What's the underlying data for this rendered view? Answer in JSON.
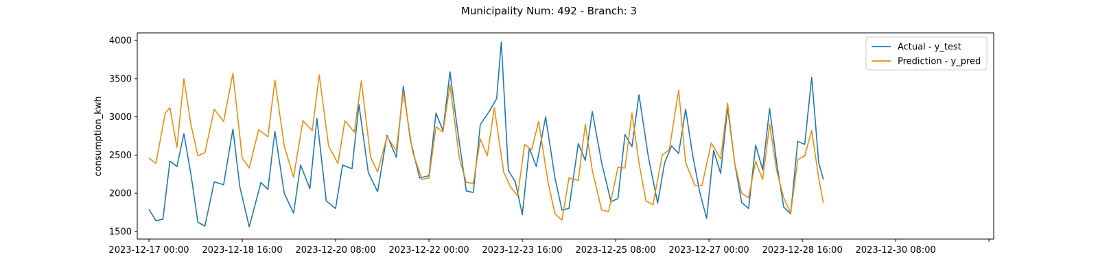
{
  "chart_data": {
    "type": "line",
    "title": "Municipality Num: 492 - Branch: 3",
    "xlabel": "",
    "ylabel": "consumption_kwh",
    "ylim": [
      1400,
      4100
    ],
    "yticks": [
      1500,
      2000,
      2500,
      3000,
      3500,
      4000
    ],
    "xlim": [
      "2023-12-16 19:00",
      "2024-01-01 02:00"
    ],
    "xticks": [
      {
        "x": "2023-12-17 00:00",
        "label": "2023-12-17 00:00"
      },
      {
        "x": "2023-12-18 16:00",
        "label": "2023-12-18 16:00"
      },
      {
        "x": "2023-12-20 08:00",
        "label": "2023-12-20 08:00"
      },
      {
        "x": "2023-12-22 00:00",
        "label": "2023-12-22 00:00"
      },
      {
        "x": "2023-12-23 16:00",
        "label": "2023-12-23 16:00"
      },
      {
        "x": "2023-12-25 08:00",
        "label": "2023-12-25 08:00"
      },
      {
        "x": "2023-12-27 00:00",
        "label": "2023-12-27 00:00"
      },
      {
        "x": "2023-12-28 16:00",
        "label": "2023-12-28 16:00"
      },
      {
        "x": "2023-12-30 08:00",
        "label": "2023-12-30 08:00"
      },
      {
        "x": "2024-01-01 00:00",
        "label": ""
      }
    ],
    "grid": false,
    "legend_position": "top-right",
    "series": [
      {
        "name": "Actual - y_test",
        "color": "#1f77b4",
        "points": [
          [
            "2023-12-17 00:00",
            1790
          ],
          [
            "2023-12-17 03:00",
            1640
          ],
          [
            "2023-12-17 06:00",
            1660
          ],
          [
            "2023-12-17 09:00",
            2420
          ],
          [
            "2023-12-17 12:00",
            2350
          ],
          [
            "2023-12-17 15:00",
            2780
          ],
          [
            "2023-12-17 18:00",
            2250
          ],
          [
            "2023-12-17 21:00",
            1620
          ],
          [
            "2023-12-18 00:00",
            1570
          ],
          [
            "2023-12-18 04:00",
            2150
          ],
          [
            "2023-12-18 08:00",
            2110
          ],
          [
            "2023-12-18 12:00",
            2840
          ],
          [
            "2023-12-18 15:00",
            2080
          ],
          [
            "2023-12-18 19:00",
            1560
          ],
          [
            "2023-12-19 00:00",
            2140
          ],
          [
            "2023-12-19 03:00",
            2050
          ],
          [
            "2023-12-19 06:00",
            2810
          ],
          [
            "2023-12-19 10:00",
            2000
          ],
          [
            "2023-12-19 14:00",
            1740
          ],
          [
            "2023-12-19 17:00",
            2370
          ],
          [
            "2023-12-19 21:00",
            2060
          ],
          [
            "2023-12-20 00:00",
            2980
          ],
          [
            "2023-12-20 04:00",
            1900
          ],
          [
            "2023-12-20 08:00",
            1800
          ],
          [
            "2023-12-20 11:00",
            2370
          ],
          [
            "2023-12-20 15:00",
            2320
          ],
          [
            "2023-12-20 18:00",
            3160
          ],
          [
            "2023-12-20 22:00",
            2270
          ],
          [
            "2023-12-21 02:00",
            2020
          ],
          [
            "2023-12-21 06:00",
            2760
          ],
          [
            "2023-12-21 10:00",
            2470
          ],
          [
            "2023-12-21 13:00",
            3400
          ],
          [
            "2023-12-21 16:00",
            2700
          ],
          [
            "2023-12-21 20:00",
            2200
          ],
          [
            "2023-12-22 00:00",
            2230
          ],
          [
            "2023-12-22 03:00",
            3050
          ],
          [
            "2023-12-22 06:00",
            2820
          ],
          [
            "2023-12-22 09:00",
            3590
          ],
          [
            "2023-12-22 12:00",
            2880
          ],
          [
            "2023-12-22 16:00",
            2030
          ],
          [
            "2023-12-22 19:00",
            2010
          ],
          [
            "2023-12-22 22:00",
            2900
          ],
          [
            "2023-12-23 02:00",
            3080
          ],
          [
            "2023-12-23 05:00",
            3240
          ],
          [
            "2023-12-23 07:00",
            3980
          ],
          [
            "2023-12-23 10:00",
            2300
          ],
          [
            "2023-12-23 13:00",
            2150
          ],
          [
            "2023-12-23 16:00",
            1720
          ],
          [
            "2023-12-23 19:00",
            2590
          ],
          [
            "2023-12-23 22:00",
            2350
          ],
          [
            "2023-12-24 02:00",
            3000
          ],
          [
            "2023-12-24 06:00",
            2200
          ],
          [
            "2023-12-24 09:00",
            1780
          ],
          [
            "2023-12-24 12:00",
            1800
          ],
          [
            "2023-12-24 16:00",
            2650
          ],
          [
            "2023-12-24 19:00",
            2430
          ],
          [
            "2023-12-24 22:00",
            3070
          ],
          [
            "2023-12-25 02:00",
            2400
          ],
          [
            "2023-12-25 06:00",
            1890
          ],
          [
            "2023-12-25 09:00",
            1930
          ],
          [
            "2023-12-25 12:00",
            2770
          ],
          [
            "2023-12-25 15:00",
            2610
          ],
          [
            "2023-12-25 18:00",
            3290
          ],
          [
            "2023-12-25 22:00",
            2480
          ],
          [
            "2023-12-26 02:00",
            1870
          ],
          [
            "2023-12-26 05:00",
            2400
          ],
          [
            "2023-12-26 08:00",
            2620
          ],
          [
            "2023-12-26 11:00",
            2520
          ],
          [
            "2023-12-26 14:00",
            3100
          ],
          [
            "2023-12-26 17:00",
            2500
          ],
          [
            "2023-12-26 20:00",
            2020
          ],
          [
            "2023-12-26 23:00",
            1670
          ],
          [
            "2023-12-27 02:00",
            2560
          ],
          [
            "2023-12-27 05:00",
            2260
          ],
          [
            "2023-12-27 08:00",
            3120
          ],
          [
            "2023-12-27 11:00",
            2400
          ],
          [
            "2023-12-27 14:00",
            1880
          ],
          [
            "2023-12-27 17:00",
            1800
          ],
          [
            "2023-12-27 20:00",
            2630
          ],
          [
            "2023-12-27 23:00",
            2310
          ],
          [
            "2023-12-28 02:00",
            3110
          ],
          [
            "2023-12-28 05:00",
            2400
          ],
          [
            "2023-12-28 08:00",
            1820
          ],
          [
            "2023-12-28 11:00",
            1730
          ],
          [
            "2023-12-28 14:00",
            2680
          ],
          [
            "2023-12-28 17:00",
            2640
          ],
          [
            "2023-12-28 20:00",
            3520
          ],
          [
            "2023-12-28 23:00",
            2400
          ],
          [
            "2023-12-29 01:00",
            2180
          ]
        ]
      },
      {
        "name": "Prediction - y_pred",
        "color": "#e88e0a",
        "points": [
          [
            "2023-12-17 00:00",
            2460
          ],
          [
            "2023-12-17 03:00",
            2390
          ],
          [
            "2023-12-17 07:00",
            3050
          ],
          [
            "2023-12-17 09:00",
            3120
          ],
          [
            "2023-12-17 12:00",
            2600
          ],
          [
            "2023-12-17 15:00",
            3500
          ],
          [
            "2023-12-17 18:00",
            2900
          ],
          [
            "2023-12-17 21:00",
            2490
          ],
          [
            "2023-12-18 00:00",
            2530
          ],
          [
            "2023-12-18 04:00",
            3100
          ],
          [
            "2023-12-18 08:00",
            2940
          ],
          [
            "2023-12-18 12:00",
            3570
          ],
          [
            "2023-12-18 16:00",
            2460
          ],
          [
            "2023-12-18 19:00",
            2330
          ],
          [
            "2023-12-18 23:00",
            2830
          ],
          [
            "2023-12-19 03:00",
            2740
          ],
          [
            "2023-12-19 06:00",
            3480
          ],
          [
            "2023-12-19 10:00",
            2620
          ],
          [
            "2023-12-19 14:00",
            2210
          ],
          [
            "2023-12-19 18:00",
            2950
          ],
          [
            "2023-12-19 22:00",
            2820
          ],
          [
            "2023-12-20 01:00",
            3550
          ],
          [
            "2023-12-20 05:00",
            2620
          ],
          [
            "2023-12-20 09:00",
            2390
          ],
          [
            "2023-12-20 12:00",
            2950
          ],
          [
            "2023-12-20 16:00",
            2800
          ],
          [
            "2023-12-20 19:00",
            3470
          ],
          [
            "2023-12-20 23:00",
            2470
          ],
          [
            "2023-12-21 02:00",
            2280
          ],
          [
            "2023-12-21 06:00",
            2740
          ],
          [
            "2023-12-21 10:00",
            2560
          ],
          [
            "2023-12-21 13:00",
            3330
          ],
          [
            "2023-12-21 17:00",
            2540
          ],
          [
            "2023-12-21 21:00",
            2180
          ],
          [
            "2023-12-22 00:00",
            2200
          ],
          [
            "2023-12-22 03:00",
            2870
          ],
          [
            "2023-12-22 06:00",
            2800
          ],
          [
            "2023-12-22 09:00",
            3420
          ],
          [
            "2023-12-22 13:00",
            2460
          ],
          [
            "2023-12-22 16:00",
            2140
          ],
          [
            "2023-12-22 19:00",
            2130
          ],
          [
            "2023-12-22 22:00",
            2710
          ],
          [
            "2023-12-23 01:00",
            2490
          ],
          [
            "2023-12-23 04:00",
            3120
          ],
          [
            "2023-12-23 08:00",
            2280
          ],
          [
            "2023-12-23 11:00",
            2080
          ],
          [
            "2023-12-23 14:00",
            1970
          ],
          [
            "2023-12-23 17:00",
            2640
          ],
          [
            "2023-12-23 20:00",
            2570
          ],
          [
            "2023-12-23 23:00",
            2940
          ],
          [
            "2023-12-24 03:00",
            2150
          ],
          [
            "2023-12-24 06:00",
            1730
          ],
          [
            "2023-12-24 09:00",
            1650
          ],
          [
            "2023-12-24 12:00",
            2200
          ],
          [
            "2023-12-24 16:00",
            2170
          ],
          [
            "2023-12-24 19:00",
            2900
          ],
          [
            "2023-12-24 22:00",
            2300
          ],
          [
            "2023-12-25 02:00",
            1780
          ],
          [
            "2023-12-25 05:00",
            1760
          ],
          [
            "2023-12-25 09:00",
            2340
          ],
          [
            "2023-12-25 12:00",
            2330
          ],
          [
            "2023-12-25 15:00",
            3050
          ],
          [
            "2023-12-25 18:00",
            2400
          ],
          [
            "2023-12-25 21:00",
            1900
          ],
          [
            "2023-12-26 00:00",
            1850
          ],
          [
            "2023-12-26 04:00",
            2500
          ],
          [
            "2023-12-26 07:00",
            2570
          ],
          [
            "2023-12-26 11:00",
            3350
          ],
          [
            "2023-12-26 14:00",
            2400
          ],
          [
            "2023-12-26 18:00",
            2100
          ],
          [
            "2023-12-26 21:00",
            2100
          ],
          [
            "2023-12-27 01:00",
            2660
          ],
          [
            "2023-12-27 05:00",
            2450
          ],
          [
            "2023-12-27 08:00",
            3180
          ],
          [
            "2023-12-27 11:00",
            2400
          ],
          [
            "2023-12-27 14:00",
            2000
          ],
          [
            "2023-12-27 17:00",
            1940
          ],
          [
            "2023-12-27 20:00",
            2420
          ],
          [
            "2023-12-27 23:00",
            2180
          ],
          [
            "2023-12-28 02:00",
            2900
          ],
          [
            "2023-12-28 05:00",
            2300
          ],
          [
            "2023-12-28 08:00",
            1940
          ],
          [
            "2023-12-28 11:00",
            1740
          ],
          [
            "2023-12-28 14:00",
            2440
          ],
          [
            "2023-12-28 17:00",
            2490
          ],
          [
            "2023-12-28 20:00",
            2820
          ],
          [
            "2023-12-28 23:00",
            2200
          ],
          [
            "2023-12-29 01:00",
            1870
          ]
        ]
      }
    ]
  }
}
